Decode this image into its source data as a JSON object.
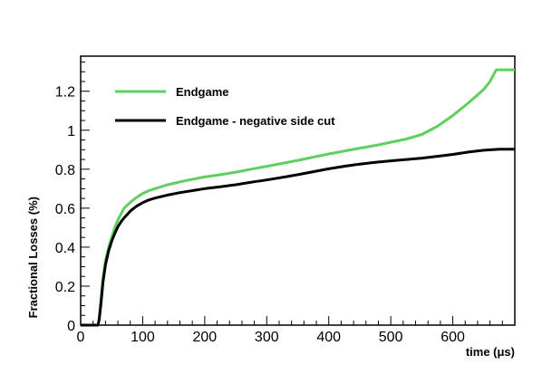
{
  "chart_data": {
    "type": "line",
    "xlabel": "time (μs)",
    "ylabel": "Fractional Losses (%)",
    "xlim": [
      0,
      700
    ],
    "ylim": [
      0,
      1.38
    ],
    "xticks": [
      0,
      100,
      200,
      300,
      400,
      500,
      600
    ],
    "xtick_labels": [
      "0",
      "100",
      "200",
      "300",
      "400",
      "500",
      "600"
    ],
    "yticks": [
      0,
      0.2,
      0.4,
      0.6,
      0.8,
      1.0,
      1.2
    ],
    "ytick_labels": [
      "0",
      "0.2",
      "0.4",
      "0.6",
      "0.8",
      "1",
      "1.2"
    ],
    "grid": false,
    "legend_position": "top-left",
    "series": [
      {
        "name": "Endgame",
        "color": "#5fcf5f",
        "x": [
          0,
          28,
          30,
          33,
          36,
          40,
          45,
          50,
          55,
          60,
          65,
          70,
          80,
          90,
          100,
          110,
          120,
          140,
          160,
          180,
          200,
          225,
          250,
          275,
          300,
          325,
          350,
          375,
          400,
          425,
          450,
          475,
          500,
          525,
          550,
          575,
          600,
          625,
          650,
          660,
          670,
          700
        ],
        "y": [
          0,
          0,
          0.04,
          0.14,
          0.24,
          0.33,
          0.4,
          0.45,
          0.5,
          0.54,
          0.57,
          0.6,
          0.63,
          0.655,
          0.675,
          0.69,
          0.7,
          0.72,
          0.735,
          0.748,
          0.76,
          0.772,
          0.785,
          0.8,
          0.815,
          0.83,
          0.845,
          0.862,
          0.878,
          0.893,
          0.908,
          0.922,
          0.938,
          0.955,
          0.978,
          1.02,
          1.075,
          1.14,
          1.21,
          1.25,
          1.31,
          1.31
        ]
      },
      {
        "name": "Endgame - negative side cut",
        "color": "#000000",
        "x": [
          0,
          28,
          30,
          33,
          36,
          40,
          45,
          50,
          55,
          60,
          65,
          70,
          80,
          90,
          100,
          110,
          120,
          140,
          160,
          180,
          200,
          225,
          250,
          275,
          300,
          325,
          350,
          375,
          400,
          425,
          450,
          475,
          500,
          525,
          550,
          575,
          600,
          625,
          650,
          675,
          700
        ],
        "y": [
          0,
          0,
          0.03,
          0.12,
          0.22,
          0.31,
          0.38,
          0.43,
          0.47,
          0.505,
          0.53,
          0.55,
          0.585,
          0.61,
          0.628,
          0.642,
          0.652,
          0.667,
          0.68,
          0.69,
          0.7,
          0.71,
          0.72,
          0.733,
          0.745,
          0.758,
          0.772,
          0.787,
          0.802,
          0.815,
          0.826,
          0.835,
          0.843,
          0.85,
          0.857,
          0.866,
          0.876,
          0.888,
          0.897,
          0.903,
          0.903
        ]
      }
    ]
  }
}
